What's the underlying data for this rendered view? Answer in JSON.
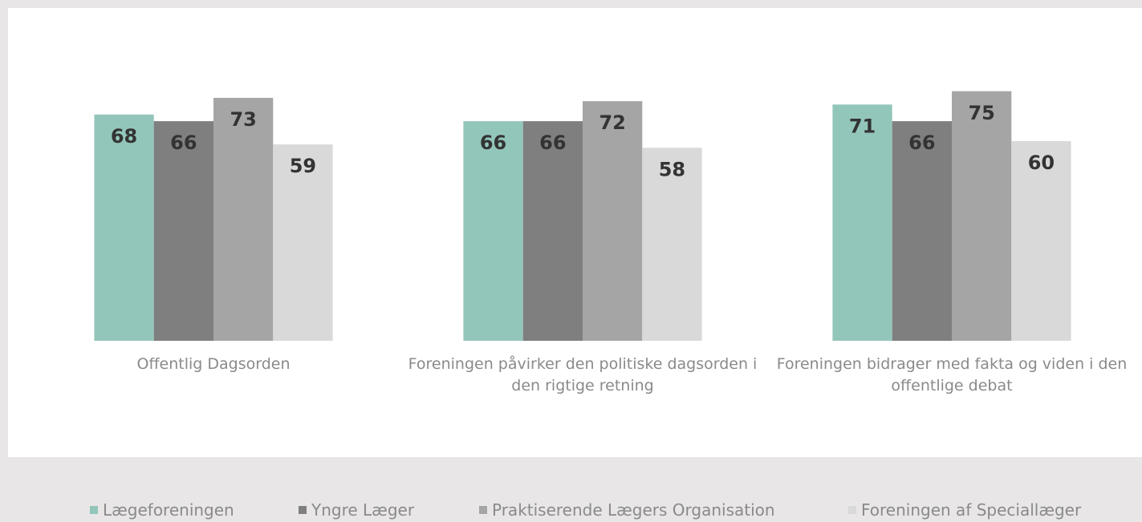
{
  "chart_data": {
    "type": "bar",
    "categories": [
      "Offentlig Dagsorden",
      "Foreningen påvirker den politiske dagsorden i den rigtige retning",
      "Foreningen bidrager med fakta og viden i den offentlige debat"
    ],
    "series": [
      {
        "name": "Lægeforeningen",
        "color": "#93c6bb",
        "values": [
          68,
          66,
          71
        ]
      },
      {
        "name": "Yngre Læger",
        "color": "#7f7f7f",
        "values": [
          66,
          66,
          66
        ]
      },
      {
        "name": "Praktiserende Lægers Organisation",
        "color": "#a5a5a5",
        "values": [
          73,
          72,
          75
        ]
      },
      {
        "name": "Foreningen af Speciallæger",
        "color": "#d9d9d9",
        "values": [
          59,
          58,
          60
        ]
      }
    ],
    "legend": "bottom"
  }
}
